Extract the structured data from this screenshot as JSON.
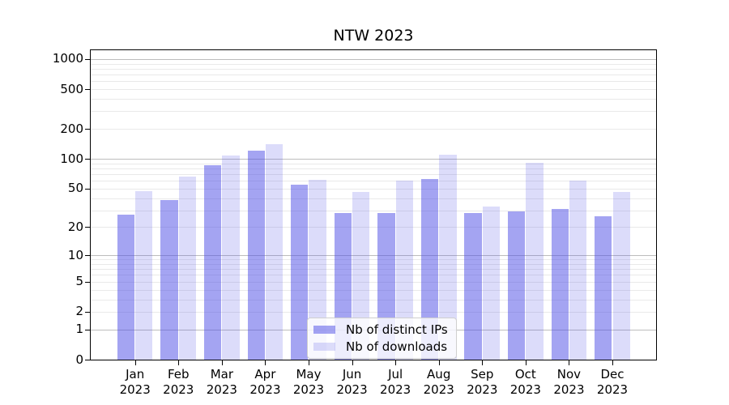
{
  "chart_data": {
    "type": "bar",
    "title": "NTW 2023",
    "x": {
      "months": [
        "Jan",
        "Feb",
        "Mar",
        "Apr",
        "May",
        "Jun",
        "Jul",
        "Aug",
        "Sep",
        "Oct",
        "Nov",
        "Dec"
      ],
      "year": "2023"
    },
    "series": [
      {
        "name": "Nb of distinct IPs",
        "color": "rgba(80,80,230,0.52)",
        "values": [
          27,
          38,
          86,
          121,
          55,
          28,
          28,
          63,
          28,
          29,
          31,
          26
        ]
      },
      {
        "name": "Nb of downloads",
        "color": "rgba(80,80,230,0.20)",
        "values": [
          47,
          66,
          109,
          140,
          61,
          46,
          60,
          110,
          33,
          92,
          60,
          46
        ]
      }
    ],
    "y_axis": {
      "scale": "log10(1+x)",
      "ticks": [
        0,
        1,
        2,
        5,
        10,
        20,
        50,
        100,
        200,
        500,
        1000
      ],
      "max": 1226,
      "major_grid": [
        1,
        10,
        100,
        1000
      ],
      "minor_grid": [
        2,
        3,
        4,
        5,
        6,
        7,
        8,
        9,
        20,
        30,
        40,
        50,
        60,
        70,
        80,
        90,
        200,
        300,
        400,
        500,
        600,
        700,
        800,
        900
      ]
    },
    "legend": {
      "position": "lower center"
    },
    "colors": {
      "bar_base": "#5050e6",
      "major_grid": "#bdbdbd",
      "minor_grid": "#e9e9e9",
      "axis": "#000000",
      "legend_border": "#cfcfcf"
    }
  }
}
